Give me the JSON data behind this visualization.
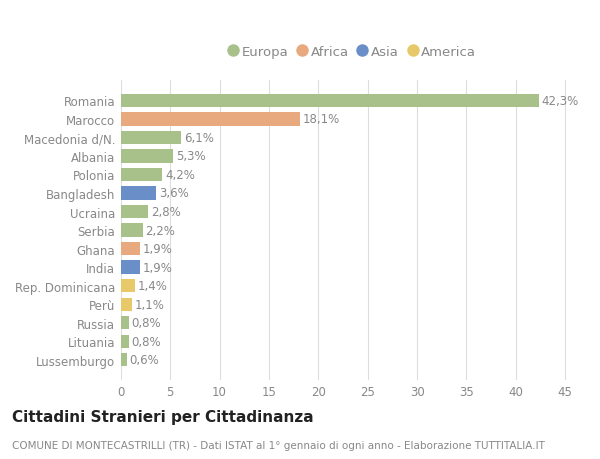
{
  "countries": [
    "Romania",
    "Marocco",
    "Macedonia d/N.",
    "Albania",
    "Polonia",
    "Bangladesh",
    "Ucraina",
    "Serbia",
    "Ghana",
    "India",
    "Rep. Dominicana",
    "Perù",
    "Russia",
    "Lituania",
    "Lussemburgo"
  ],
  "values": [
    42.3,
    18.1,
    6.1,
    5.3,
    4.2,
    3.6,
    2.8,
    2.2,
    1.9,
    1.9,
    1.4,
    1.1,
    0.8,
    0.8,
    0.6
  ],
  "labels": [
    "42,3%",
    "18,1%",
    "6,1%",
    "5,3%",
    "4,2%",
    "3,6%",
    "2,8%",
    "2,2%",
    "1,9%",
    "1,9%",
    "1,4%",
    "1,1%",
    "0,8%",
    "0,8%",
    "0,6%"
  ],
  "continents": [
    "Europa",
    "Africa",
    "Europa",
    "Europa",
    "Europa",
    "Asia",
    "Europa",
    "Europa",
    "Africa",
    "Asia",
    "America",
    "America",
    "Europa",
    "Europa",
    "Europa"
  ],
  "continent_colors": {
    "Europa": "#a8c08a",
    "Africa": "#e8a97e",
    "Asia": "#6a8fc8",
    "America": "#e8c96a"
  },
  "legend_order": [
    "Europa",
    "Africa",
    "Asia",
    "America"
  ],
  "xlim": [
    0,
    47
  ],
  "xticks": [
    0,
    5,
    10,
    15,
    20,
    25,
    30,
    35,
    40,
    45
  ],
  "title": "Cittadini Stranieri per Cittadinanza",
  "subtitle": "COMUNE DI MONTECASTRILLI (TR) - Dati ISTAT al 1° gennaio di ogni anno - Elaborazione TUTTITALIA.IT",
  "background_color": "#ffffff",
  "grid_color": "#dddddd",
  "bar_height": 0.72,
  "label_fontsize": 8.5,
  "tick_fontsize": 8.5,
  "title_fontsize": 11,
  "subtitle_fontsize": 7.5
}
